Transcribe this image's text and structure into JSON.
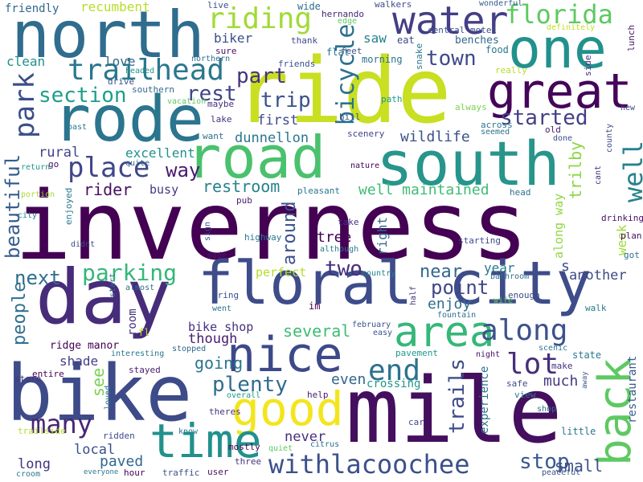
{
  "words": [
    {
      "text": "inverness",
      "color": "#440154"
    },
    {
      "text": "ride",
      "color": "#c8df22"
    },
    {
      "text": "mile",
      "color": "#440f5e"
    },
    {
      "text": "south",
      "color": "#27958b"
    },
    {
      "text": "north",
      "color": "#2f6c8e"
    },
    {
      "text": "rode",
      "color": "#2b758e"
    },
    {
      "text": "road",
      "color": "#4ac16d"
    },
    {
      "text": "bike",
      "color": "#3e4b89"
    },
    {
      "text": "day",
      "color": "#472c7a"
    },
    {
      "text": "floral city",
      "color": "#3e4c8a"
    },
    {
      "text": "one",
      "color": "#21918c"
    },
    {
      "text": "great",
      "color": "#450559"
    },
    {
      "text": "nice",
      "color": "#3d4a89"
    },
    {
      "text": "water",
      "color": "#433e85"
    },
    {
      "text": "good",
      "color": "#f3e51e"
    },
    {
      "text": "area",
      "color": "#35b779"
    },
    {
      "text": "back",
      "color": "#5ec962"
    },
    {
      "text": "time",
      "color": "#21918c"
    },
    {
      "text": "florida",
      "color": "#5ec962"
    },
    {
      "text": "withlacoochee",
      "color": "#3b518b"
    },
    {
      "text": "trailhead",
      "color": "#2a778e"
    },
    {
      "text": "riding",
      "color": "#a2da37"
    },
    {
      "text": "park",
      "color": "#3c4f8a"
    },
    {
      "text": "place",
      "color": "#3f4788"
    },
    {
      "text": "way",
      "color": "#481b6d"
    },
    {
      "text": "along",
      "color": "#3b528b"
    },
    {
      "text": "well",
      "color": "#26828e"
    },
    {
      "text": "end",
      "color": "#2c728e"
    },
    {
      "text": "lot",
      "color": "#472d7b"
    },
    {
      "text": "bicycle",
      "color": "#2d708e"
    },
    {
      "text": "section",
      "color": "#1f9e89"
    },
    {
      "text": "part",
      "color": "#46337e"
    },
    {
      "text": "trip",
      "color": "#3b518b"
    },
    {
      "text": "rest",
      "color": "#414487"
    },
    {
      "text": "town",
      "color": "#3e4a89"
    },
    {
      "text": "started",
      "color": "#423f85"
    },
    {
      "text": "many",
      "color": "#482576"
    },
    {
      "text": "plenty",
      "color": "#2f6c8e"
    },
    {
      "text": "parking",
      "color": "#35b779"
    },
    {
      "text": "beautiful",
      "color": "#365c8d"
    },
    {
      "text": "next",
      "color": "#2e6e8e"
    },
    {
      "text": "two",
      "color": "#46307e"
    },
    {
      "text": "point",
      "color": "#3f4788"
    },
    {
      "text": "trails",
      "color": "#3e4b8a"
    },
    {
      "text": "stop",
      "color": "#38598c"
    },
    {
      "text": "people",
      "color": "#2d708e"
    },
    {
      "text": "well maintained",
      "color": "#3dbc74"
    },
    {
      "text": "restroom",
      "color": "#26828e"
    },
    {
      "text": "rider",
      "color": "#471063"
    },
    {
      "text": "around",
      "color": "#3b528b"
    },
    {
      "text": "trilby",
      "color": "#8bd646"
    },
    {
      "text": "near",
      "color": "#31688e"
    },
    {
      "text": "enjoy",
      "color": "#2e6f8e"
    },
    {
      "text": "wildlife",
      "color": "#3b528b"
    },
    {
      "text": "dunnellon",
      "color": "#2a778e"
    },
    {
      "text": "first",
      "color": "#3e4a89"
    },
    {
      "text": "excellent",
      "color": "#21908d"
    },
    {
      "text": "busy",
      "color": "#443a83"
    },
    {
      "text": "rural",
      "color": "#414487"
    },
    {
      "text": "going",
      "color": "#2b758e"
    },
    {
      "text": "see",
      "color": "#7ad151"
    },
    {
      "text": "several",
      "color": "#3fbc73"
    },
    {
      "text": "though",
      "color": "#481b6d"
    },
    {
      "text": "bike shop",
      "color": "#46317e"
    },
    {
      "text": "ridge manor",
      "color": "#440154"
    },
    {
      "text": "shade",
      "color": "#424086"
    },
    {
      "text": "even",
      "color": "#32658e"
    },
    {
      "text": "much",
      "color": "#453781"
    },
    {
      "text": "small",
      "color": "#3b528b"
    },
    {
      "text": "paved",
      "color": "#30698e"
    },
    {
      "text": "local",
      "color": "#3c4f8a"
    },
    {
      "text": "long",
      "color": "#46327e"
    },
    {
      "text": "never",
      "color": "#46307e"
    },
    {
      "text": "perfect",
      "color": "#b5de2b"
    },
    {
      "text": "tree",
      "color": "#440154"
    },
    {
      "text": "another",
      "color": "#3e4a89"
    },
    {
      "text": "year",
      "color": "#2a788e"
    },
    {
      "text": "week",
      "color": "#a0da39"
    },
    {
      "text": "along way",
      "color": "#90d743"
    },
    {
      "text": "restaurant",
      "color": "#375a8c"
    },
    {
      "text": "experience",
      "color": "#2c728e"
    },
    {
      "text": "crossing",
      "color": "#1f988b"
    },
    {
      "text": "right",
      "color": "#31688e"
    },
    {
      "text": "room",
      "color": "#46317e"
    },
    {
      "text": "love",
      "color": "#31688e"
    },
    {
      "text": "biker",
      "color": "#3c4f8a"
    },
    {
      "text": "clean",
      "color": "#21918c"
    },
    {
      "text": "saw",
      "color": "#27808e"
    },
    {
      "text": "recumbent",
      "color": "#b8de29"
    },
    {
      "text": "friendly",
      "color": "#31688e"
    },
    {
      "text": "benches",
      "color": "#31688e"
    },
    {
      "text": "food",
      "color": "#29788e"
    },
    {
      "text": "central motel",
      "color": "#3b518b"
    },
    {
      "text": "eat",
      "color": "#3e4989"
    },
    {
      "text": "flat",
      "color": "#2c728e"
    },
    {
      "text": "feet",
      "color": "#3b528b"
    },
    {
      "text": "morning",
      "color": "#2c728e"
    },
    {
      "text": "snake",
      "color": "#2a788e"
    },
    {
      "text": "hernando",
      "color": "#482576"
    },
    {
      "text": "edge",
      "color": "#5ec962"
    },
    {
      "text": "walkers",
      "color": "#3e4a89"
    },
    {
      "text": "wide",
      "color": "#2f6c8e"
    },
    {
      "text": "live",
      "color": "#3b528b"
    },
    {
      "text": "wonderful",
      "color": "#365c8d"
    },
    {
      "text": "definitely",
      "color": "#c0df25"
    },
    {
      "text": "lunch",
      "color": "#471365"
    },
    {
      "text": "side",
      "color": "#46327e"
    },
    {
      "text": "really",
      "color": "#b5de2b"
    },
    {
      "text": "thank",
      "color": "#3e4a89"
    },
    {
      "text": "sure",
      "color": "#471063"
    },
    {
      "text": "friends",
      "color": "#3b528b"
    },
    {
      "text": "northern",
      "color": "#2d708e"
    },
    {
      "text": "drive",
      "color": "#3b518b"
    },
    {
      "text": "headed",
      "color": "#21918c"
    },
    {
      "text": "southern",
      "color": "#31688e"
    },
    {
      "text": "maybe",
      "color": "#472f7d"
    },
    {
      "text": "vacation",
      "color": "#5ec962"
    },
    {
      "text": "path",
      "color": "#1f9a8a"
    },
    {
      "text": "always",
      "color": "#7ad151"
    },
    {
      "text": "hill",
      "color": "#3b528b"
    },
    {
      "text": "across",
      "color": "#2a778e"
    },
    {
      "text": "seemed",
      "color": "#2c728e"
    },
    {
      "text": "old",
      "color": "#481b6d"
    },
    {
      "text": "done",
      "color": "#3b518b"
    },
    {
      "text": "new",
      "color": "#3e4a89"
    },
    {
      "text": "county",
      "color": "#3e4a89"
    },
    {
      "text": "lake",
      "color": "#46307e"
    },
    {
      "text": "want",
      "color": "#2c728e"
    },
    {
      "text": "scenery",
      "color": "#414487"
    },
    {
      "text": "past",
      "color": "#29798e"
    },
    {
      "text": "quite",
      "color": "#31688e"
    },
    {
      "text": "go",
      "color": "#471063"
    },
    {
      "text": "return",
      "color": "#1f988b"
    },
    {
      "text": "nature",
      "color": "#440154"
    },
    {
      "text": "cant",
      "color": "#46337e"
    },
    {
      "text": "pleasant",
      "color": "#29788e"
    },
    {
      "text": "portion",
      "color": "#a8db34"
    },
    {
      "text": "enjoyed",
      "color": "#2a788e"
    },
    {
      "text": "city",
      "color": "#26828e"
    },
    {
      "text": "didnt",
      "color": "#3e4a89"
    },
    {
      "text": "pub",
      "color": "#481b6d"
    },
    {
      "text": "head",
      "color": "#2d708e"
    },
    {
      "text": "drinking",
      "color": "#471164"
    },
    {
      "text": "take",
      "color": "#46337e"
    },
    {
      "text": "although",
      "color": "#2a788e"
    },
    {
      "text": "starting",
      "color": "#3e4a89"
    },
    {
      "text": "highway",
      "color": "#2a788e"
    },
    {
      "text": "sign",
      "color": "#3e4a89"
    },
    {
      "text": "made",
      "color": "#481b6d"
    },
    {
      "text": "plan",
      "color": "#471063"
    },
    {
      "text": "got",
      "color": "#2c728e"
    },
    {
      "text": "start",
      "color": "#31688e"
    },
    {
      "text": "s",
      "color": "#3b518b"
    },
    {
      "text": "country",
      "color": "#26828e"
    },
    {
      "text": "bathroom",
      "color": "#2d708e"
    },
    {
      "text": "almost",
      "color": "#2d708e"
    },
    {
      "text": "bring",
      "color": "#3b518b"
    },
    {
      "text": "went",
      "color": "#2a788e"
    },
    {
      "text": "im",
      "color": "#440154"
    },
    {
      "text": "enough",
      "color": "#3e4a89"
    },
    {
      "text": "wife",
      "color": "#5ec962"
    },
    {
      "text": "walk",
      "color": "#2a788e"
    },
    {
      "text": "half",
      "color": "#46337e"
    },
    {
      "text": "fountain",
      "color": "#2d708e"
    },
    {
      "text": "fl",
      "color": "#b5de2b"
    },
    {
      "text": "february",
      "color": "#3b528b"
    },
    {
      "text": "easy",
      "color": "#3b518b"
    },
    {
      "text": "stopped",
      "color": "#31688e"
    },
    {
      "text": "interesting",
      "color": "#2a778e"
    },
    {
      "text": "pavement",
      "color": "#1f988b"
    },
    {
      "text": "night",
      "color": "#471063"
    },
    {
      "text": "scenic",
      "color": "#2c728e"
    },
    {
      "text": "state",
      "color": "#29798e"
    },
    {
      "text": "stayed",
      "color": "#481b6d"
    },
    {
      "text": "make",
      "color": "#46337e"
    },
    {
      "text": "entire",
      "color": "#440154"
    },
    {
      "text": "safe",
      "color": "#3e4989"
    },
    {
      "text": "away",
      "color": "#3b528b"
    },
    {
      "text": "store",
      "color": "#46327e"
    },
    {
      "text": "loved",
      "color": "#2a788e"
    },
    {
      "text": "overall",
      "color": "#1f988b"
    },
    {
      "text": "help",
      "color": "#481b6d"
    },
    {
      "text": "theres",
      "color": "#46337e"
    },
    {
      "text": "view",
      "color": "#2a788e"
    },
    {
      "text": "shop",
      "color": "#2d708e"
    },
    {
      "text": "car",
      "color": "#3e4a89"
    },
    {
      "text": "little",
      "color": "#2a788e"
    },
    {
      "text": "trailside",
      "color": "#b5de2b"
    },
    {
      "text": "ridden",
      "color": "#3e4a89"
    },
    {
      "text": "know",
      "color": "#2a788e"
    },
    {
      "text": "mostly",
      "color": "#440154"
    },
    {
      "text": "quiet",
      "color": "#5ec962"
    },
    {
      "text": "citrus",
      "color": "#2d708e"
    },
    {
      "text": "three",
      "color": "#46337e"
    },
    {
      "text": "traffic",
      "color": "#3b528b"
    },
    {
      "text": "user",
      "color": "#471063"
    },
    {
      "text": "croom",
      "color": "#2a788e"
    },
    {
      "text": "everyone",
      "color": "#2a788e"
    },
    {
      "text": "hour",
      "color": "#440154"
    },
    {
      "text": "peaceful",
      "color": "#3b528b"
    }
  ]
}
